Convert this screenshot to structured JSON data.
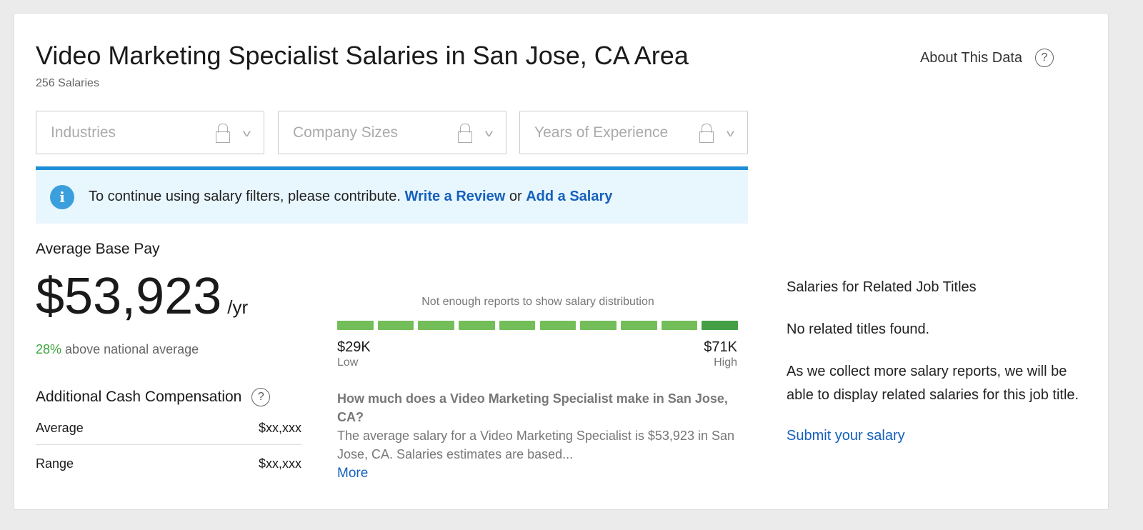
{
  "header": {
    "title": "Video Marketing Specialist Salaries in San Jose, CA Area",
    "count": "256 Salaries",
    "about": "About This Data",
    "help_icon": "?"
  },
  "filters": [
    {
      "label": "Industries"
    },
    {
      "label": "Company Sizes"
    },
    {
      "label": "Years of Experience"
    }
  ],
  "banner": {
    "text": "To continue using salary filters, please contribute.",
    "link1": "Write a Review",
    "or": "or",
    "link2": "Add a Salary"
  },
  "pay": {
    "label": "Average Base Pay",
    "amount": "$53,923",
    "unit": "/yr",
    "pct": "28%",
    "compare": "above national average"
  },
  "cash": {
    "title": "Additional Cash Compensation",
    "rows": [
      {
        "label": "Average",
        "value": "$xx,xxx"
      },
      {
        "label": "Range",
        "value": "$xx,xxx"
      }
    ]
  },
  "distribution": {
    "message": "Not enough reports to show salary distribution",
    "low_value": "$29K",
    "low_label": "Low",
    "high_value": "$71K",
    "high_label": "High",
    "segments": 10,
    "highlighted_segment": 10,
    "colors": {
      "segment": "#74be5a",
      "highlight": "#45a045"
    }
  },
  "faq": {
    "question": "How much does a Video Marketing Specialist make in San Jose, CA?",
    "answer": "The average salary for a Video Marketing Specialist is $53,923 in San Jose, CA. Salaries estimates are based...",
    "more": "More"
  },
  "related": {
    "title": "Salaries for Related Job Titles",
    "none": "No related titles found.",
    "note": "As we collect more salary reports, we will be able to display related salaries for this job title.",
    "submit": "Submit your salary"
  }
}
